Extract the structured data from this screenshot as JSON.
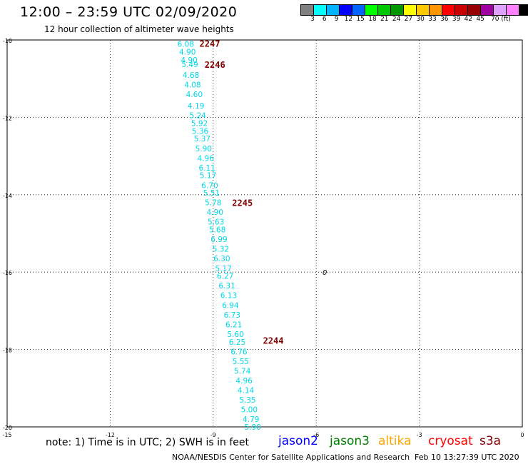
{
  "header": {
    "title": "12:00 – 23:59 UTC 02/09/2020",
    "subtitle": "12 hour collection of altimeter wave heights"
  },
  "color_scale": {
    "colors": [
      "#808080",
      "#00ffff",
      "#00b4ff",
      "#0000ff",
      "#0064ff",
      "#00ff00",
      "#00c800",
      "#009600",
      "#ffff00",
      "#ffc800",
      "#ff9600",
      "#ff0000",
      "#c80000",
      "#960000",
      "#a000a0",
      "#e0a0ff",
      "#ff80ff",
      "#000000"
    ],
    "labels": [
      "3",
      "6",
      "9",
      "12",
      "15",
      "18",
      "21",
      "24",
      "27",
      "30",
      "33",
      "36",
      "39",
      "42",
      "45",
      "70 (ft)"
    ]
  },
  "map": {
    "lat_ticks": [
      "-10",
      "-12",
      "-14",
      "-16",
      "-18",
      "-20"
    ],
    "lon_ticks": [
      "-15",
      "-12",
      "-9",
      "-6",
      "-3",
      "0"
    ],
    "lat_range": [
      -20,
      -10
    ],
    "lon_range": [
      -15,
      0
    ],
    "grid": true
  },
  "track": {
    "color": "#00d8e8",
    "points": [
      {
        "lon": -9.8,
        "lat": -10.1,
        "swh": "6.08"
      },
      {
        "lon": -9.75,
        "lat": -10.3,
        "swh": "4.90"
      },
      {
        "lon": -9.7,
        "lat": -10.52,
        "swh": "4.90"
      },
      {
        "lon": -9.68,
        "lat": -10.63,
        "swh": "5.49"
      },
      {
        "lon": -9.65,
        "lat": -10.9,
        "swh": "4.68"
      },
      {
        "lon": -9.6,
        "lat": -11.15,
        "swh": "4.08"
      },
      {
        "lon": -9.55,
        "lat": -11.4,
        "swh": "4.60"
      },
      {
        "lon": -9.5,
        "lat": -11.7,
        "swh": "4.19"
      },
      {
        "lon": -9.45,
        "lat": -11.95,
        "swh": "5.24"
      },
      {
        "lon": -9.4,
        "lat": -12.15,
        "swh": "5.92"
      },
      {
        "lon": -9.38,
        "lat": -12.35,
        "swh": "5.36"
      },
      {
        "lon": -9.32,
        "lat": -12.55,
        "swh": "5.37"
      },
      {
        "lon": -9.28,
        "lat": -12.8,
        "swh": "5.90"
      },
      {
        "lon": -9.22,
        "lat": -13.05,
        "swh": "4.96"
      },
      {
        "lon": -9.18,
        "lat": -13.3,
        "swh": "6.11"
      },
      {
        "lon": -9.15,
        "lat": -13.5,
        "swh": "5.17"
      },
      {
        "lon": -9.1,
        "lat": -13.75,
        "swh": "6.70"
      },
      {
        "lon": -9.05,
        "lat": -13.95,
        "swh": "5.51"
      },
      {
        "lon": -9.0,
        "lat": -14.2,
        "swh": "5.78"
      },
      {
        "lon": -8.95,
        "lat": -14.45,
        "swh": "4.90"
      },
      {
        "lon": -8.92,
        "lat": -14.7,
        "swh": "5.63"
      },
      {
        "lon": -8.88,
        "lat": -14.9,
        "swh": "5.68"
      },
      {
        "lon": -8.83,
        "lat": -15.15,
        "swh": "6.99"
      },
      {
        "lon": -8.78,
        "lat": -15.4,
        "swh": "5.32"
      },
      {
        "lon": -8.75,
        "lat": -15.65,
        "swh": "6.30"
      },
      {
        "lon": -8.7,
        "lat": -15.9,
        "swh": "5.17"
      },
      {
        "lon": -8.65,
        "lat": -16.1,
        "swh": "6.27"
      },
      {
        "lon": -8.6,
        "lat": -16.35,
        "swh": "6.31"
      },
      {
        "lon": -8.55,
        "lat": -16.6,
        "swh": "6.13"
      },
      {
        "lon": -8.5,
        "lat": -16.85,
        "swh": "6.94"
      },
      {
        "lon": -8.45,
        "lat": -17.1,
        "swh": "6.73"
      },
      {
        "lon": -8.4,
        "lat": -17.35,
        "swh": "6.21"
      },
      {
        "lon": -8.35,
        "lat": -17.6,
        "swh": "5.60"
      },
      {
        "lon": -8.3,
        "lat": -17.8,
        "swh": "6.25"
      },
      {
        "lon": -8.25,
        "lat": -18.05,
        "swh": "6.76"
      },
      {
        "lon": -8.2,
        "lat": -18.3,
        "swh": "5.55"
      },
      {
        "lon": -8.15,
        "lat": -18.55,
        "swh": "5.74"
      },
      {
        "lon": -8.1,
        "lat": -18.8,
        "swh": "4.96"
      },
      {
        "lon": -8.05,
        "lat": -19.05,
        "swh": "4.14"
      },
      {
        "lon": -8.0,
        "lat": -19.3,
        "swh": "5.35"
      },
      {
        "lon": -7.95,
        "lat": -19.55,
        "swh": "5.00"
      },
      {
        "lon": -7.9,
        "lat": -19.8,
        "swh": "4.79"
      },
      {
        "lon": -7.85,
        "lat": -20.0,
        "swh": "5.90"
      }
    ],
    "times": [
      {
        "label": "2247",
        "lon": -9.4,
        "lat": -10.1
      },
      {
        "label": "2246",
        "lon": -9.25,
        "lat": -10.65
      },
      {
        "label": "2245",
        "lon": -8.45,
        "lat": -14.22
      },
      {
        "label": "2244",
        "lon": -7.55,
        "lat": -17.78
      }
    ],
    "time_color": "#800000"
  },
  "marker": {
    "symbol": "0",
    "lon": -5.75,
    "lat": -16.0
  },
  "note": "note:  1) Time is in UTC; 2) SWH is in feet",
  "satellites": [
    {
      "name": "jason2",
      "color": "#0000ff"
    },
    {
      "name": "jason3",
      "color": "#008000"
    },
    {
      "name": "altika",
      "color": "#ffa500"
    },
    {
      "name": "cryosat",
      "color": "#ff0000"
    },
    {
      "name": "s3a",
      "color": "#800000"
    }
  ],
  "footer": {
    "credit": "NOAA/NESDIS Center for Satellite Applications and Research",
    "timestamp": "Feb 10 13:27:39 UTC 2020"
  }
}
